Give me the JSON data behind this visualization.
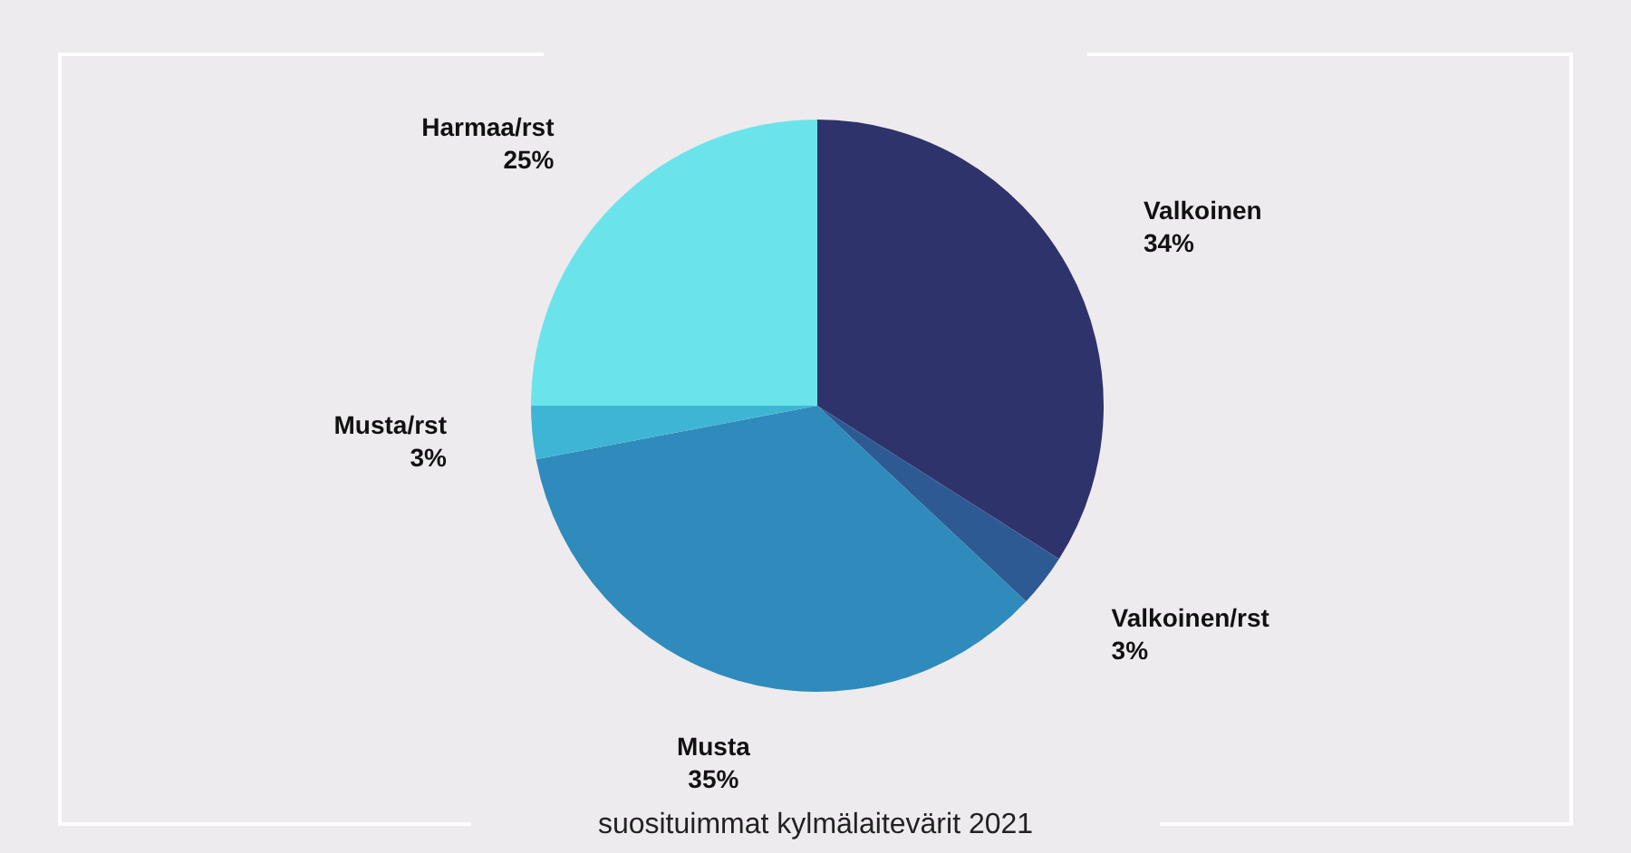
{
  "chart_data": {
    "type": "pie",
    "categories": [
      "Valkoinen",
      "Valkoinen/rst",
      "Musta",
      "Musta/rst",
      "Harmaa/rst"
    ],
    "values": [
      34,
      3,
      35,
      3,
      25
    ],
    "colors": [
      "#2f336b",
      "#2e5a94",
      "#2e8bbb",
      "#3fb5d6",
      "#6ae4ea"
    ],
    "value_labels": [
      "34%",
      "3%",
      "35%",
      "3%",
      "25%"
    ],
    "annotations": [
      "suosituimmat kylmälaitevärit 2021"
    ]
  }
}
